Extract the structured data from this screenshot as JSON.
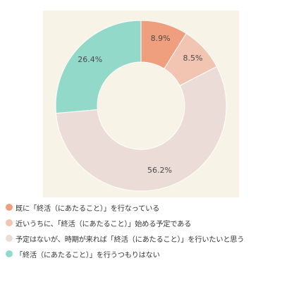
{
  "chart_data": {
    "type": "pie",
    "title": "",
    "categories": [
      "既に「終活（にあたること）」を行なっている",
      "近いうちに、「終活（にあたること）」始める予定である",
      "予定はないが、時期が来れば「終活（にあたること）」を行いたいと思う",
      "「終活（にあたること）」を行うつもりはない"
    ],
    "values": [
      8.9,
      8.5,
      56.2,
      26.4
    ],
    "value_labels": [
      "8.9%",
      "8.5%",
      "56.2%",
      "26.4%"
    ],
    "colors": [
      "#ef9f7e",
      "#f2c4b2",
      "#ecdcd8",
      "#92d9c9"
    ],
    "donut": true,
    "start_angle": "top",
    "direction": "clockwise",
    "legend_position": "bottom-left",
    "background": "#f7f3e6"
  }
}
